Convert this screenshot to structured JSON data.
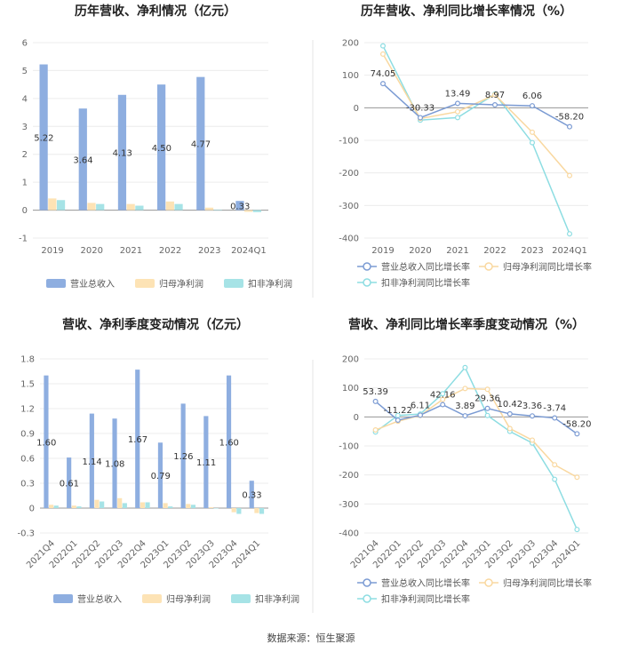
{
  "footer": {
    "source": "数据来源：恒生聚源"
  },
  "colors": {
    "revenue": "#8eaee0",
    "net_profit": "#fde3b5",
    "deducted_profit": "#a6e3e6",
    "line_revenue": "#7b9bd3",
    "line_net": "#f9d8a0",
    "line_deducted": "#8ddde2"
  },
  "chart_data": [
    {
      "id": "annual_bar",
      "type": "bar",
      "title": "历年营收、净利情况（亿元）",
      "categories": [
        "2019",
        "2020",
        "2021",
        "2022",
        "2023",
        "2024Q1"
      ],
      "series": [
        {
          "name": "营业总收入",
          "values": [
            5.22,
            3.64,
            4.13,
            4.5,
            4.77,
            0.33
          ]
        },
        {
          "name": "归母净利润",
          "values": [
            0.42,
            0.26,
            0.22,
            0.31,
            0.09,
            -0.06
          ]
        },
        {
          "name": "扣非净利润",
          "values": [
            0.36,
            0.22,
            0.16,
            0.22,
            0.02,
            -0.07
          ]
        }
      ],
      "labels": [
        "5.22",
        "3.64",
        "4.13",
        "4.50",
        "4.77",
        "0.33"
      ],
      "yticks": [
        "6",
        "5",
        "4",
        "3",
        "2",
        "1",
        "0",
        "-1"
      ],
      "ylim": [
        -1,
        6
      ]
    },
    {
      "id": "annual_line",
      "type": "line",
      "title": "历年营收、净利同比增长率情况（%）",
      "categories": [
        "2019",
        "2020",
        "2021",
        "2022",
        "2023",
        "2024Q1"
      ],
      "series": [
        {
          "name": "营业总收入同比增长率",
          "values": [
            74.05,
            -30.33,
            13.49,
            8.97,
            6.06,
            -58.2
          ]
        },
        {
          "name": "归母净利润同比增长率",
          "values": [
            165,
            -33,
            -12,
            40,
            -75,
            -208
          ]
        },
        {
          "name": "扣非净利润同比增长率",
          "values": [
            190,
            -38,
            -30,
            42,
            -107,
            -387
          ]
        }
      ],
      "labels": [
        "74.05",
        "-30.33",
        "13.49",
        "8.97",
        "6.06",
        "-58.20"
      ],
      "yticks": [
        "200",
        "100",
        "0",
        "-100",
        "-200",
        "-300",
        "-400"
      ],
      "ylim": [
        -400,
        200
      ]
    },
    {
      "id": "quarter_bar",
      "type": "bar",
      "title": "营收、净利季度变动情况（亿元）",
      "categories": [
        "2021Q4",
        "2022Q1",
        "2022Q2",
        "2022Q3",
        "2022Q4",
        "2023Q1",
        "2023Q2",
        "2023Q3",
        "2023Q4",
        "2024Q1"
      ],
      "series": [
        {
          "name": "营业总收入",
          "values": [
            1.6,
            0.61,
            1.14,
            1.08,
            1.67,
            0.79,
            1.26,
            1.11,
            1.6,
            0.33
          ]
        },
        {
          "name": "归母净利润",
          "values": [
            0.04,
            0.03,
            0.1,
            0.12,
            0.07,
            0.06,
            0.05,
            0.01,
            -0.05,
            -0.06
          ]
        },
        {
          "name": "扣非净利润",
          "values": [
            0.03,
            0.02,
            0.08,
            0.06,
            0.07,
            0.02,
            0.04,
            0.0,
            -0.07,
            -0.07
          ]
        }
      ],
      "labels": [
        "1.60",
        "0.61",
        "1.14",
        "1.08",
        "1.67",
        "0.79",
        "1.26",
        "1.11",
        "1.60",
        "0.33"
      ],
      "yticks": [
        "1.8",
        "1.5",
        "1.2",
        "0.9",
        "0.6",
        "0.3",
        "0",
        "-0.3"
      ],
      "ylim": [
        -0.3,
        1.8
      ]
    },
    {
      "id": "quarter_line",
      "type": "line",
      "title": "营收、净利同比增长率季度变动情况（%）",
      "categories": [
        "2021Q4",
        "2022Q1",
        "2022Q2",
        "2022Q3",
        "2022Q4",
        "2023Q1",
        "2023Q2",
        "2023Q3",
        "2023Q4",
        "2024Q1"
      ],
      "series": [
        {
          "name": "营业总收入同比增长率",
          "values": [
            53.39,
            -11.22,
            6.11,
            42.16,
            3.89,
            29.36,
            10.42,
            3.36,
            -3.74,
            -58.2
          ]
        },
        {
          "name": "归母净利润同比增长率",
          "values": [
            -45,
            -15,
            5,
            60,
            98,
            95,
            -40,
            -80,
            -165,
            -208
          ]
        },
        {
          "name": "扣非净利润同比增长率",
          "values": [
            -52,
            5,
            10,
            80,
            170,
            5,
            -50,
            -90,
            -215,
            -388
          ]
        }
      ],
      "labels": [
        "53.39",
        "-11.22",
        "6.11",
        "42.16",
        "3.89",
        "29.36",
        "10.42",
        "3.36",
        "-3.74",
        "-58.20"
      ],
      "yticks": [
        "200",
        "100",
        "0",
        "-100",
        "-200",
        "-300",
        "-400"
      ],
      "ylim": [
        -400,
        200
      ]
    }
  ]
}
